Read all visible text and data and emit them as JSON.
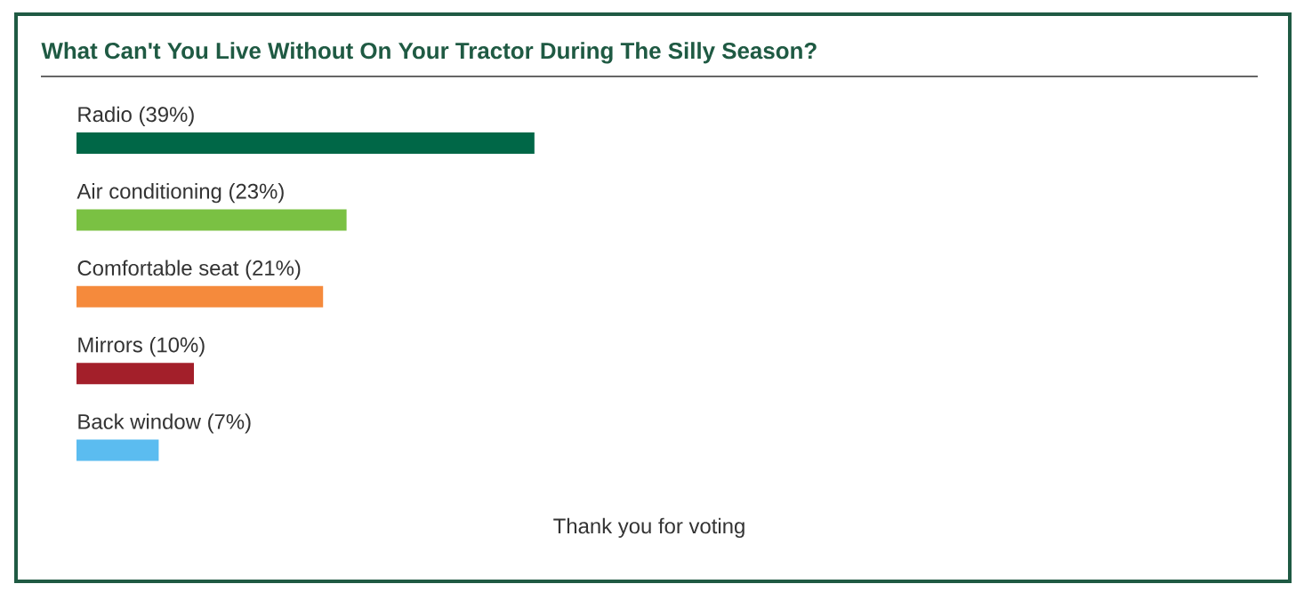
{
  "chart_data": {
    "type": "bar",
    "orientation": "horizontal",
    "title": "What Can't You Live Without On Your Tractor During The Silly Season?",
    "categories": [
      "Radio",
      "Air conditioning",
      "Comfortable seat",
      "Mirrors",
      "Back window"
    ],
    "values": [
      39,
      23,
      21,
      10,
      7
    ],
    "value_labels": [
      "(39%)",
      "(23%)",
      "(21%)",
      "(10%)",
      "(7%)"
    ],
    "colors": [
      "#006747",
      "#7ac143",
      "#f58a3c",
      "#a31f2a",
      "#5bbcf0"
    ],
    "annotations": [
      "Thank you for voting"
    ]
  }
}
